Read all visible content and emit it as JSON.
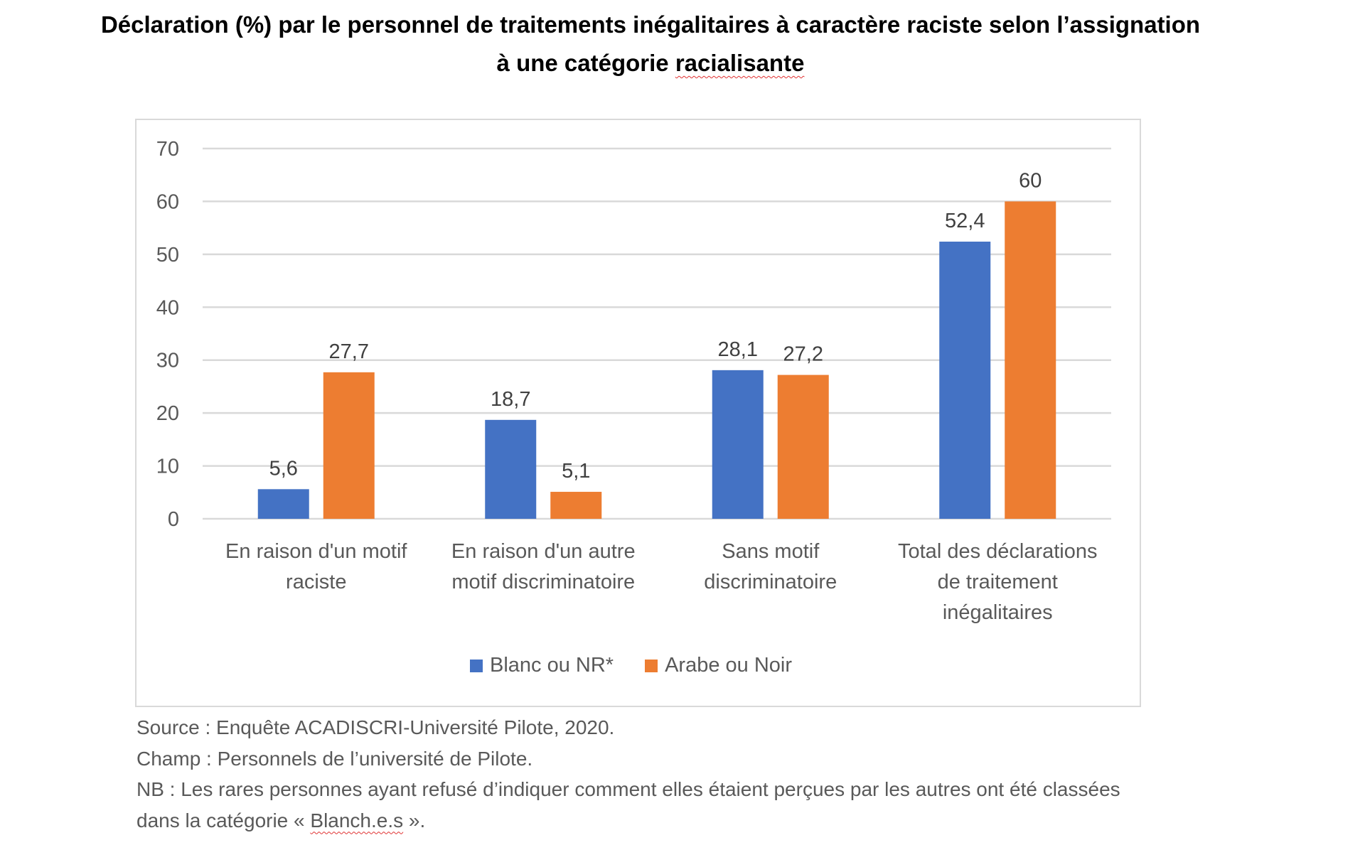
{
  "title_line1": "Déclaration (%) par le personnel de traitements inégalitaires à caractère raciste selon l’assignation",
  "title_line2_a": "à une catégorie ",
  "title_line2_b": "racialisante",
  "chart_data": {
    "type": "bar",
    "title": "Déclaration (%) par le personnel de traitements inégalitaires à caractère raciste selon l’assignation à une catégorie racialisante",
    "categories": [
      [
        "En raison d'un motif",
        "raciste"
      ],
      [
        "En raison d'un autre",
        "motif discriminatoire"
      ],
      [
        "Sans motif",
        "discriminatoire"
      ],
      [
        "Total des déclarations",
        "de traitement",
        "inégalitaires"
      ]
    ],
    "series": [
      {
        "name": "Blanc ou NR*",
        "color": "#4472C4",
        "values": [
          5.6,
          18.7,
          28.1,
          52.4
        ],
        "labels": [
          "5,6",
          "18,7",
          "28,1",
          "52,4"
        ]
      },
      {
        "name": "Arabe ou Noir",
        "color": "#ED7D31",
        "values": [
          27.7,
          5.1,
          27.2,
          60
        ],
        "labels": [
          "27,7",
          "5,1",
          "27,2",
          "60"
        ]
      }
    ],
    "yticks": [
      "0",
      "10",
      "20",
      "30",
      "40",
      "50",
      "60",
      "70"
    ],
    "ylim": [
      0,
      70
    ],
    "grid": true,
    "legend": "bottom"
  },
  "footer": {
    "source": "Source : Enquête ACADISCRI-Université Pilote, 2020.",
    "champ": "Champ : Personnels de l’université de Pilote.",
    "nb1": "NB : Les rares personnes ayant refusé d’indiquer comment elles étaient perçues par les autres ont été classées",
    "nb2_a": "dans la catégorie « ",
    "nb2_b": "Blanch.e.s",
    "nb2_c": " »."
  }
}
